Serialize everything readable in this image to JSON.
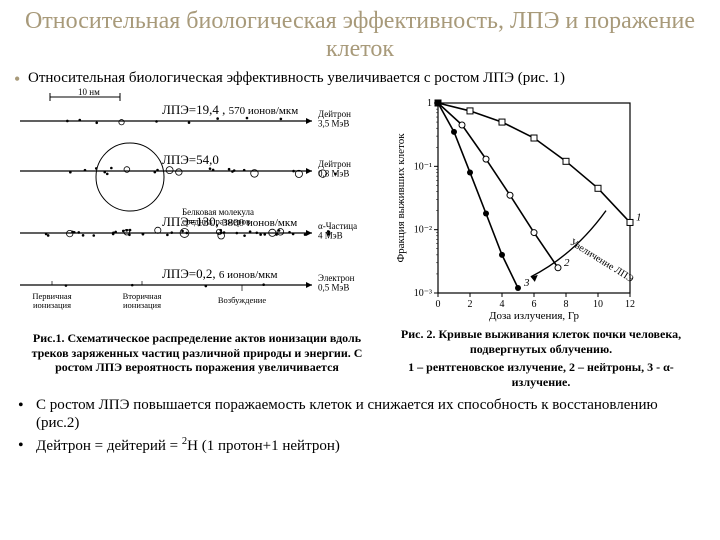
{
  "title": "Относительная биологическая эффективность, ЛПЭ и поражение клеток",
  "bullet_top": "Относительная биологическая эффективность увеличивается с ростом ЛПЭ (рис. 1)",
  "tracks": {
    "scale_label": "10 нм",
    "rows": [
      {
        "y": 8,
        "lpe": "ЛПЭ=19,4 ,",
        "units": "570 ионов/мкм",
        "right_label": "Дейтрон\n3,5 МэВ",
        "particle_density": "sparse",
        "big_circle": false
      },
      {
        "y": 58,
        "lpe": "ЛПЭ=54,0",
        "units": "",
        "right_label": "Дейтрон\n0,8 МэВ",
        "particle_density": "medium",
        "big_circle": true
      },
      {
        "y": 120,
        "lpe": "ЛПЭ=130,",
        "units": "3800 ионов/мкм",
        "right_label": "α-Частица\n4 МэВ",
        "particle_density": "dense",
        "big_circle": false
      },
      {
        "y": 172,
        "lpe": "ЛПЭ=0,2,",
        "units": "6 ионов/мкм",
        "right_label": "Электрон\n0,5 МэВ",
        "particle_density": "very_sparse",
        "big_circle": false
      }
    ],
    "mid_label": "Белковая молекула\nсредних размеров",
    "ionization_labels": {
      "primary": "Первичная\nионизация",
      "secondary": "Вторичная\nионизация",
      "excitation": "Возбуждение"
    }
  },
  "fig1_caption": "Рис.1. Схематическое распределение актов ионизации вдоль треков заряженных частиц различной природы и энергии. С ростом ЛПЭ вероятность поражения увеличивается",
  "survival": {
    "xlabel": "Доза излучения, Гр",
    "ylabel": "Фракция выживших клеток",
    "arrow_label": "Увеличение ЛПЭ",
    "xlim": [
      0,
      12
    ],
    "xtick_step": 2,
    "yticks": [
      "1",
      "10⁻¹",
      "10⁻²",
      "10⁻³"
    ],
    "ylog_min": 0.001,
    "ylog_max": 1,
    "curves": [
      {
        "id": "1",
        "marker": "square_open",
        "color": "#000000",
        "points": [
          [
            0,
            1
          ],
          [
            2,
            0.75
          ],
          [
            4,
            0.5
          ],
          [
            6,
            0.28
          ],
          [
            8,
            0.12
          ],
          [
            10,
            0.045
          ],
          [
            12,
            0.013
          ]
        ]
      },
      {
        "id": "2",
        "marker": "circle_open",
        "color": "#000000",
        "points": [
          [
            0,
            1
          ],
          [
            1.5,
            0.45
          ],
          [
            3,
            0.13
          ],
          [
            4.5,
            0.035
          ],
          [
            6,
            0.009
          ],
          [
            7.5,
            0.0025
          ]
        ]
      },
      {
        "id": "3",
        "marker": "circle_filled",
        "color": "#000000",
        "points": [
          [
            0,
            1
          ],
          [
            1,
            0.35
          ],
          [
            2,
            0.08
          ],
          [
            3,
            0.018
          ],
          [
            4,
            0.004
          ],
          [
            5,
            0.0012
          ]
        ]
      }
    ],
    "background_color": "#ffffff",
    "axis_color": "#000000",
    "font_size_axis": 10
  },
  "fig2_caption": "Рис. 2. Кривые выживания клеток почки человека, подвергнутых облучению.",
  "fig2_legend": "1 – рентгеновское излучение, 2 – нейтроны, 3 - α-излучение.",
  "bottom_bullets": [
    "С ростом ЛПЭ повышается поражаемость клеток и снижается их способность к восстановлению (рис.2)",
    "Дейтрон = дейтерий = ²H (1 протон+1 нейтрон)"
  ],
  "colors": {
    "title": "#a89a7a",
    "text": "#000000",
    "bg": "#ffffff"
  }
}
